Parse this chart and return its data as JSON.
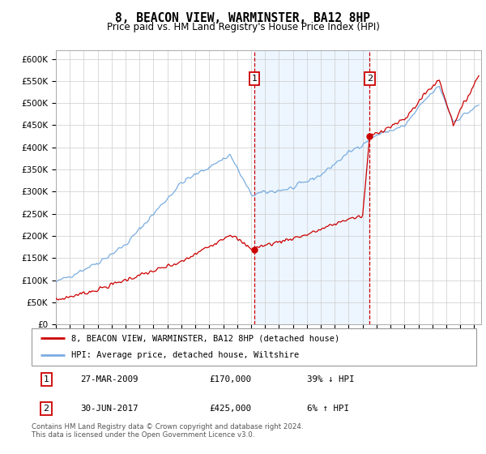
{
  "title": "8, BEACON VIEW, WARMINSTER, BA12 8HP",
  "subtitle": "Price paid vs. HM Land Registry's House Price Index (HPI)",
  "grid_color": "#cccccc",
  "shade_color": "#ddeeff",
  "ylim_min": 0,
  "ylim_max": 620000,
  "xlim_start": 1995.0,
  "xlim_end": 2025.5,
  "sale1_x": 2009.23,
  "sale1_y": 170000,
  "sale1_label": "1",
  "sale1_date": "27-MAR-2009",
  "sale1_price": "£170,000",
  "sale1_note": "39% ↓ HPI",
  "sale2_x": 2017.5,
  "sale2_y": 425000,
  "sale2_label": "2",
  "sale2_date": "30-JUN-2017",
  "sale2_price": "£425,000",
  "sale2_note": "6% ↑ HPI",
  "line1_color": "#cc0000",
  "line2_color": "#7aade0",
  "line1_label": "8, BEACON VIEW, WARMINSTER, BA12 8HP (detached house)",
  "line2_label": "HPI: Average price, detached house, Wiltshire",
  "footer": "Contains HM Land Registry data © Crown copyright and database right 2024.\nThis data is licensed under the Open Government Licence v3.0.",
  "yticks": [
    0,
    50000,
    100000,
    150000,
    200000,
    250000,
    300000,
    350000,
    400000,
    450000,
    500000,
    550000,
    600000
  ],
  "ytick_labels": [
    "£0",
    "£50K",
    "£100K",
    "£150K",
    "£200K",
    "£250K",
    "£300K",
    "£350K",
    "£400K",
    "£450K",
    "£500K",
    "£550K",
    "£600K"
  ]
}
